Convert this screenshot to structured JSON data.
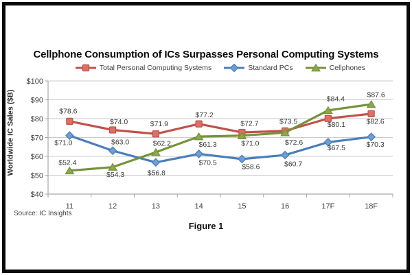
{
  "window": {
    "background": "#FFFFFF",
    "border_color": "#0A0A0A"
  },
  "title": "Cellphone Consumption of ICs Surpasses Personal Computing Systems",
  "source_note": "Source: IC Insights",
  "figure_caption": "Figure 1",
  "chart_data": {
    "type": "line",
    "title": "Cellphone Consumption of ICs Surpasses Personal Computing Systems",
    "categories": [
      "11",
      "12",
      "13",
      "14",
      "15",
      "16",
      "17F",
      "18F"
    ],
    "series": [
      {
        "name": "Total Personal Computing Systems",
        "color": "#C2514B",
        "marker_fill": "#DD7166",
        "marker": "square",
        "values": [
          78.6,
          74.0,
          71.9,
          77.2,
          72.7,
          73.5,
          80.1,
          82.6
        ]
      },
      {
        "name": "Standard PCs",
        "color": "#4A7EBB",
        "marker_fill": "#6F9DD4",
        "marker": "diamond",
        "values": [
          71.0,
          63.0,
          56.8,
          61.3,
          58.6,
          60.7,
          67.5,
          70.3
        ]
      },
      {
        "name": "Cellphones",
        "color": "#76923C",
        "marker_fill": "#8BA94A",
        "marker": "triangle",
        "values": [
          52.4,
          54.3,
          62.2,
          70.5,
          71.0,
          72.6,
          84.4,
          87.6
        ]
      }
    ],
    "xlabel": "",
    "ylabel": "Worldwide IC Sales ($B)",
    "ylim": [
      40,
      100
    ],
    "ytick_step": 10,
    "ytick_prefix": "$",
    "grid": true,
    "legend_position": "top",
    "data_labels": true,
    "data_label_prefix": "$",
    "colors": {
      "gridline": "#CBCBCB",
      "axis": "#A6A6A6",
      "text": "#3C3C3C"
    }
  }
}
